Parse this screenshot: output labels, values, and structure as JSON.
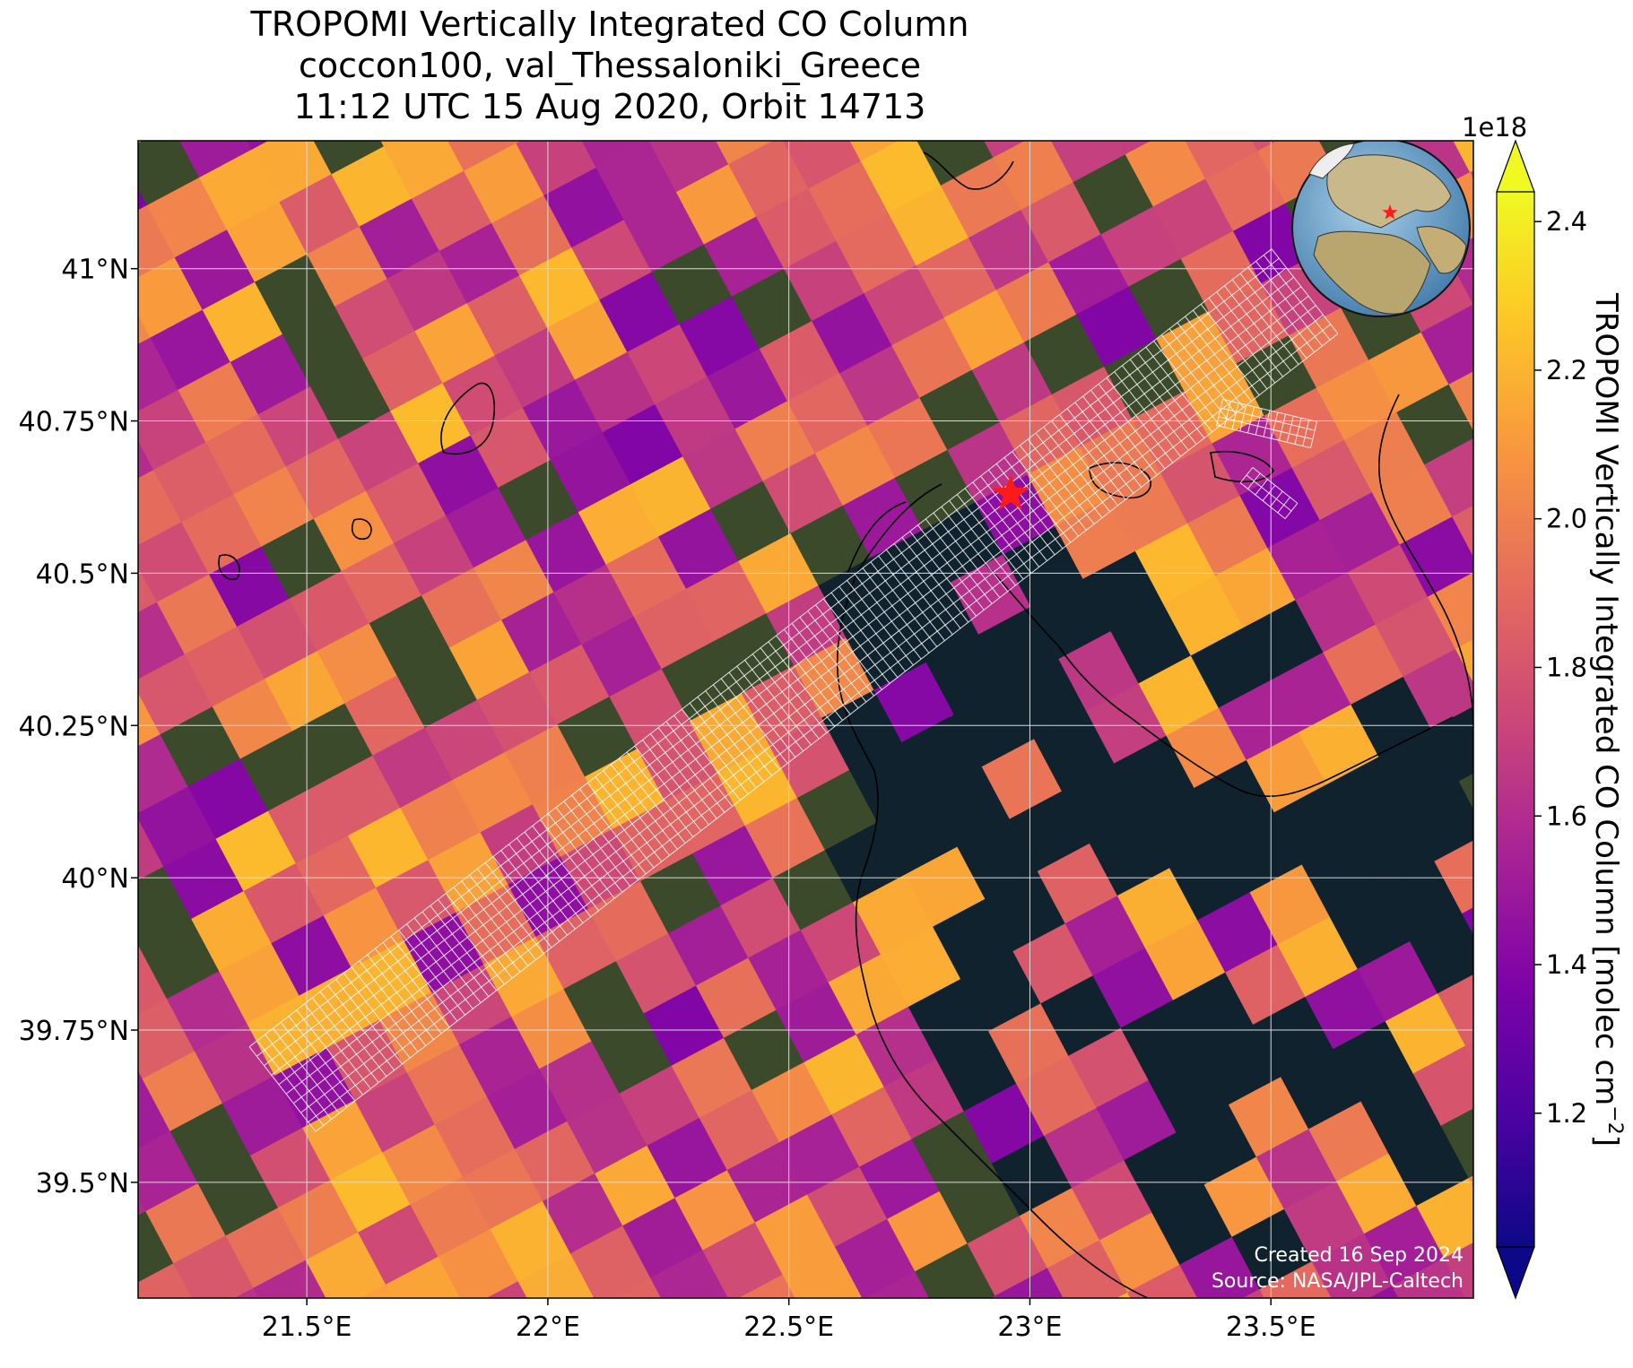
{
  "title": {
    "line1": "TROPOMI Vertically Integrated CO Column",
    "line2": "coccon100, val_Thessaloniki_Greece",
    "line3": "11:12 UTC 15 Aug 2020, Orbit 14713"
  },
  "map": {
    "lon_range": [
      21.15,
      23.92
    ],
    "lat_range": [
      39.31,
      41.21
    ],
    "x_ticks": [
      "21.5°E",
      "22°E",
      "22.5°E",
      "23°E",
      "23.5°E"
    ],
    "x_tick_values": [
      21.5,
      22.0,
      22.5,
      23.0,
      23.5
    ],
    "y_ticks": [
      "41°N",
      "40.75°N",
      "40.5°N",
      "40.25°N",
      "40°N",
      "39.75°N",
      "39.5°N"
    ],
    "y_tick_values": [
      41.0,
      40.75,
      40.5,
      40.25,
      40.0,
      39.75,
      39.5
    ],
    "gridlines": true,
    "site_marker": {
      "lon": 22.96,
      "lat": 40.63,
      "color": "#ff1a1a",
      "icon": "star-icon"
    },
    "inset_globe": {
      "icon": "globe-icon",
      "placement": "top-right"
    },
    "credits": {
      "line1": "Created 16 Sep 2024",
      "line2": "Source: NASA/JPL-Caltech"
    }
  },
  "colorbar": {
    "label_text": "TROPOMI Vertically Integrated CO Column [molec cm",
    "label_superscript": "−2",
    "label_close": "]",
    "multiplier": "1e18",
    "range": [
      1.02,
      2.44
    ],
    "ticks": [
      "1.2",
      "1.4",
      "1.6",
      "1.8",
      "2.0",
      "2.2",
      "2.4"
    ],
    "tick_values": [
      1.2,
      1.4,
      1.6,
      1.8,
      2.0,
      2.2,
      2.4
    ],
    "colormap": "plasma",
    "extend": "both"
  },
  "colors": {
    "sea": "#0f222e",
    "land": "#3b4a2b",
    "grid": "#d9d9d9",
    "footprint": "#ffffff"
  }
}
